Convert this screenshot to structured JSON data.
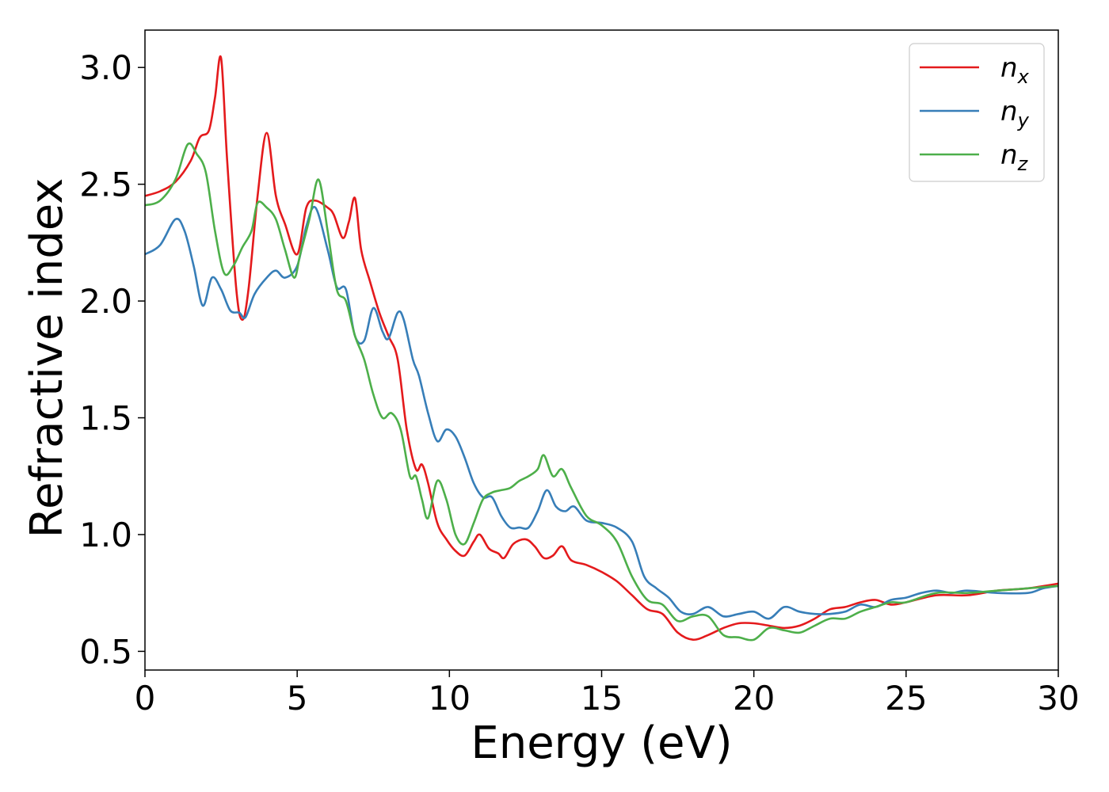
{
  "chart_data": {
    "type": "line",
    "title": "",
    "xlabel": "Energy (eV)",
    "ylabel": "Refractive index",
    "xlim": [
      0,
      30
    ],
    "ylim": [
      0.42,
      3.16
    ],
    "xticks": [
      0,
      5,
      10,
      15,
      20,
      25,
      30
    ],
    "yticks": [
      0.5,
      1.0,
      1.5,
      2.0,
      2.5,
      3.0
    ],
    "xtick_labels": [
      "0",
      "5",
      "10",
      "15",
      "20",
      "25",
      "30"
    ],
    "ytick_labels": [
      "0.5",
      "1.0",
      "1.5",
      "2.0",
      "2.5",
      "3.0"
    ],
    "grid": false,
    "legend_position": "top-right",
    "series": [
      {
        "name": "n",
        "name_subscript": "x",
        "color": "#e41a1c",
        "x": [
          0,
          0.5,
          1.0,
          1.5,
          1.8,
          2.1,
          2.3,
          2.5,
          2.7,
          3.0,
          3.2,
          3.4,
          3.7,
          4.0,
          4.3,
          4.6,
          5.0,
          5.3,
          5.6,
          6.0,
          6.2,
          6.5,
          6.7,
          6.9,
          7.1,
          7.4,
          7.7,
          8.0,
          8.3,
          8.6,
          8.9,
          9.1,
          9.3,
          9.6,
          9.9,
          10.2,
          10.5,
          10.8,
          11.0,
          11.3,
          11.6,
          11.8,
          12.1,
          12.5,
          12.8,
          13.1,
          13.4,
          13.7,
          14.0,
          14.5,
          15.0,
          15.5,
          16.0,
          16.5,
          17.0,
          17.5,
          18.0,
          18.5,
          19.0,
          19.5,
          20.0,
          20.5,
          21.0,
          21.5,
          22.0,
          22.5,
          23.0,
          23.5,
          24.0,
          24.5,
          25.0,
          26.0,
          27.0,
          28.0,
          29.0,
          30.0
        ],
        "values": [
          2.45,
          2.47,
          2.51,
          2.6,
          2.7,
          2.73,
          2.87,
          3.04,
          2.6,
          2.05,
          1.92,
          2.05,
          2.45,
          2.72,
          2.45,
          2.33,
          2.2,
          2.4,
          2.43,
          2.4,
          2.37,
          2.27,
          2.34,
          2.44,
          2.22,
          2.08,
          1.95,
          1.85,
          1.75,
          1.45,
          1.28,
          1.3,
          1.22,
          1.05,
          0.98,
          0.93,
          0.91,
          0.97,
          1.0,
          0.94,
          0.92,
          0.9,
          0.96,
          0.98,
          0.95,
          0.9,
          0.91,
          0.95,
          0.89,
          0.87,
          0.84,
          0.8,
          0.74,
          0.68,
          0.66,
          0.58,
          0.55,
          0.57,
          0.6,
          0.62,
          0.62,
          0.61,
          0.6,
          0.61,
          0.64,
          0.68,
          0.69,
          0.71,
          0.72,
          0.7,
          0.71,
          0.74,
          0.74,
          0.76,
          0.77,
          0.79
        ]
      },
      {
        "name": "n",
        "name_subscript": "y",
        "color": "#377eb8",
        "x": [
          0,
          0.5,
          1.0,
          1.3,
          1.6,
          1.9,
          2.2,
          2.5,
          2.8,
          3.1,
          3.3,
          3.6,
          4.0,
          4.3,
          4.6,
          5.0,
          5.3,
          5.6,
          6.0,
          6.3,
          6.6,
          6.9,
          7.2,
          7.5,
          7.8,
          8.0,
          8.3,
          8.5,
          8.8,
          9.0,
          9.3,
          9.6,
          9.9,
          10.2,
          10.5,
          10.8,
          11.1,
          11.4,
          11.7,
          12.0,
          12.3,
          12.6,
          12.9,
          13.2,
          13.5,
          13.8,
          14.1,
          14.5,
          15.0,
          15.5,
          16.0,
          16.4,
          16.8,
          17.2,
          17.6,
          18.0,
          18.5,
          19.0,
          19.5,
          20.0,
          20.5,
          21.0,
          21.5,
          22.0,
          22.5,
          23.0,
          23.5,
          24.0,
          24.5,
          25.0,
          25.5,
          26.0,
          26.5,
          27.0,
          28.0,
          29.0,
          29.5,
          30.0
        ],
        "values": [
          2.2,
          2.24,
          2.35,
          2.3,
          2.15,
          1.98,
          2.1,
          2.05,
          1.96,
          1.95,
          1.93,
          2.03,
          2.1,
          2.13,
          2.1,
          2.15,
          2.32,
          2.4,
          2.22,
          2.06,
          2.05,
          1.85,
          1.83,
          1.97,
          1.87,
          1.84,
          1.95,
          1.92,
          1.75,
          1.68,
          1.52,
          1.4,
          1.45,
          1.42,
          1.33,
          1.22,
          1.16,
          1.16,
          1.08,
          1.03,
          1.03,
          1.03,
          1.1,
          1.19,
          1.12,
          1.1,
          1.12,
          1.06,
          1.05,
          1.03,
          0.97,
          0.82,
          0.77,
          0.73,
          0.67,
          0.66,
          0.69,
          0.65,
          0.66,
          0.67,
          0.64,
          0.69,
          0.67,
          0.66,
          0.66,
          0.67,
          0.7,
          0.69,
          0.72,
          0.73,
          0.75,
          0.76,
          0.75,
          0.76,
          0.75,
          0.75,
          0.77,
          0.78
        ]
      },
      {
        "name": "n",
        "name_subscript": "z",
        "color": "#4daf4a",
        "x": [
          0,
          0.5,
          1.0,
          1.4,
          1.7,
          2.0,
          2.3,
          2.6,
          2.9,
          3.2,
          3.5,
          3.7,
          4.0,
          4.3,
          4.6,
          4.9,
          5.1,
          5.4,
          5.7,
          6.0,
          6.3,
          6.6,
          6.9,
          7.2,
          7.5,
          7.8,
          8.1,
          8.4,
          8.7,
          8.9,
          9.1,
          9.3,
          9.6,
          9.9,
          10.2,
          10.5,
          10.8,
          11.1,
          11.4,
          11.7,
          12.0,
          12.3,
          12.6,
          12.9,
          13.1,
          13.4,
          13.7,
          14.0,
          14.5,
          15.0,
          15.5,
          16.0,
          16.5,
          17.0,
          17.5,
          18.0,
          18.5,
          19.0,
          19.5,
          20.0,
          20.5,
          21.0,
          21.5,
          22.0,
          22.5,
          23.0,
          23.5,
          24.0,
          24.5,
          25.0,
          26.0,
          27.0,
          28.0,
          29.0,
          30.0
        ],
        "values": [
          2.41,
          2.43,
          2.52,
          2.67,
          2.63,
          2.55,
          2.3,
          2.12,
          2.15,
          2.23,
          2.3,
          2.42,
          2.4,
          2.35,
          2.22,
          2.1,
          2.2,
          2.35,
          2.52,
          2.3,
          2.05,
          2.0,
          1.85,
          1.75,
          1.6,
          1.5,
          1.52,
          1.45,
          1.25,
          1.25,
          1.15,
          1.07,
          1.23,
          1.15,
          1.0,
          0.96,
          1.05,
          1.15,
          1.18,
          1.19,
          1.2,
          1.23,
          1.25,
          1.28,
          1.34,
          1.25,
          1.28,
          1.2,
          1.08,
          1.04,
          0.97,
          0.82,
          0.72,
          0.7,
          0.63,
          0.65,
          0.65,
          0.57,
          0.56,
          0.55,
          0.6,
          0.59,
          0.58,
          0.61,
          0.64,
          0.64,
          0.67,
          0.69,
          0.71,
          0.71,
          0.75,
          0.75,
          0.76,
          0.77,
          0.78
        ]
      }
    ]
  }
}
